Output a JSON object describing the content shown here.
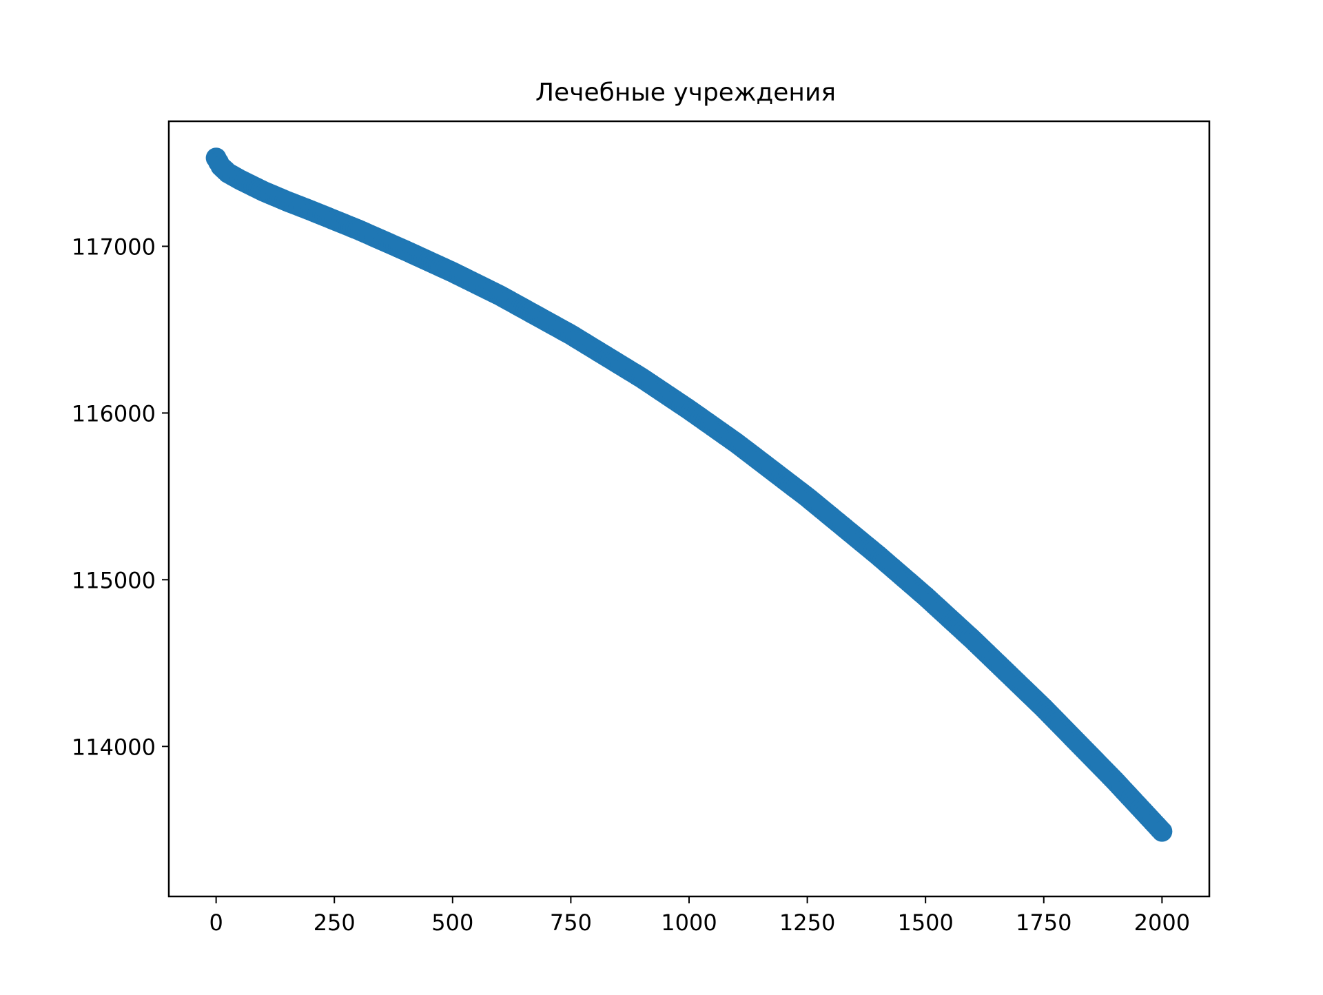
{
  "chart_data": {
    "type": "scatter",
    "title": "Лечебные учреждения",
    "xlabel": "",
    "ylabel": "",
    "xlim": [
      -100,
      2100
    ],
    "ylim": [
      113100,
      117750
    ],
    "x_ticks": [
      0,
      250,
      500,
      750,
      1000,
      1250,
      1500,
      1750,
      2000
    ],
    "y_ticks": [
      114000,
      115000,
      116000,
      117000
    ],
    "x_tick_labels": [
      "0",
      "250",
      "500",
      "750",
      "1000",
      "1250",
      "1500",
      "1750",
      "2000"
    ],
    "y_tick_labels": [
      "114000",
      "115000",
      "116000",
      "117000"
    ],
    "grid": false,
    "legend": "none",
    "series": [
      {
        "color": "#1f77b4",
        "x": [
          0,
          10,
          25,
          50,
          100,
          150,
          200,
          300,
          400,
          500,
          600,
          750,
          900,
          1000,
          1100,
          1250,
          1400,
          1500,
          1600,
          1750,
          1900,
          2000
        ],
        "y": [
          117530,
          117480,
          117440,
          117400,
          117330,
          117270,
          117215,
          117100,
          116975,
          116845,
          116705,
          116470,
          116210,
          116020,
          115820,
          115495,
          115145,
          114900,
          114640,
          114230,
          113795,
          113490
        ]
      }
    ]
  }
}
